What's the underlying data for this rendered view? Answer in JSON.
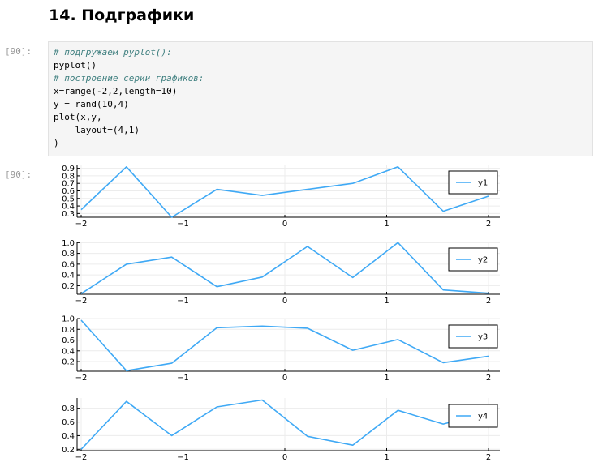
{
  "heading": "14. Подграфики",
  "input_prompt": "[90]:",
  "output_prompt": "[90]:",
  "code_lines": [
    "# подгружаем pyplot():",
    "pyplot()",
    "# построение серии графиков:",
    "x=range(-2,2,length=10)",
    "y = rand(10,4)",
    "plot(x,y,",
    "    layout=(4,1)",
    ")"
  ],
  "code_comment_lines": [
    0,
    2
  ],
  "colors": {
    "series": "#3fa9f5",
    "comment": "#408080",
    "cell_bg": "#f5f5f5"
  },
  "chart_data": [
    {
      "type": "line",
      "x": [
        -2,
        -1.5556,
        -1.1111,
        -0.6667,
        -0.2222,
        0.2222,
        0.6667,
        1.1111,
        1.5556,
        2
      ],
      "series": [
        {
          "name": "y1",
          "values": [
            0.35,
            0.92,
            0.25,
            0.62,
            0.54,
            0.62,
            0.7,
            0.92,
            0.33,
            0.53
          ]
        }
      ],
      "xlim": [
        -2,
        2
      ],
      "ylim": [
        0.25,
        0.95
      ],
      "xticks": [
        -2,
        -1,
        0,
        1,
        2
      ],
      "xtick_labels": [
        "−2",
        "−1",
        "0",
        "1",
        "2"
      ],
      "yticks": [
        0.3,
        0.4,
        0.5,
        0.6,
        0.7,
        0.8,
        0.9
      ],
      "ytick_labels": [
        "0.3",
        "0.4",
        "0.5",
        "0.6",
        "0.7",
        "0.8",
        "0.9"
      ],
      "grid": true,
      "legend": "top-right"
    },
    {
      "type": "line",
      "x": [
        -2,
        -1.5556,
        -1.1111,
        -0.6667,
        -0.2222,
        0.2222,
        0.6667,
        1.1111,
        1.5556,
        2
      ],
      "series": [
        {
          "name": "y2",
          "values": [
            0.05,
            0.6,
            0.73,
            0.18,
            0.36,
            0.93,
            0.35,
            1.0,
            0.12,
            0.06
          ]
        }
      ],
      "xlim": [
        -2,
        2
      ],
      "ylim": [
        0.04,
        1.02
      ],
      "xticks": [
        -2,
        -1,
        0,
        1,
        2
      ],
      "xtick_labels": [
        "−2",
        "−1",
        "0",
        "1",
        "2"
      ],
      "yticks": [
        0.2,
        0.4,
        0.6,
        0.8,
        1.0
      ],
      "ytick_labels": [
        "0.2",
        "0.4",
        "0.6",
        "0.8",
        "1.0"
      ],
      "grid": true,
      "legend": "top-right"
    },
    {
      "type": "line",
      "x": [
        -2,
        -1.5556,
        -1.1111,
        -0.6667,
        -0.2222,
        0.2222,
        0.6667,
        1.1111,
        1.5556,
        2
      ],
      "series": [
        {
          "name": "y3",
          "values": [
            0.97,
            0.03,
            0.17,
            0.83,
            0.86,
            0.82,
            0.41,
            0.61,
            0.18,
            0.3
          ]
        }
      ],
      "xlim": [
        -2,
        2
      ],
      "ylim": [
        0.02,
        1.0
      ],
      "xticks": [
        -2,
        -1,
        0,
        1,
        2
      ],
      "xtick_labels": [
        "−2",
        "−1",
        "0",
        "1",
        "2"
      ],
      "yticks": [
        0.2,
        0.4,
        0.6,
        0.8,
        1.0
      ],
      "ytick_labels": [
        "0.2",
        "0.4",
        "0.6",
        "0.8",
        "1.0"
      ],
      "grid": true,
      "legend": "top-right"
    },
    {
      "type": "line",
      "x": [
        -2,
        -1.5556,
        -1.1111,
        -0.6667,
        -0.2222,
        0.2222,
        0.6667,
        1.1111,
        1.5556,
        2
      ],
      "series": [
        {
          "name": "y4",
          "values": [
            0.2,
            0.9,
            0.4,
            0.82,
            0.92,
            0.39,
            0.26,
            0.77,
            0.57,
            0.74
          ]
        }
      ],
      "xlim": [
        -2,
        2
      ],
      "ylim": [
        0.18,
        0.95
      ],
      "xticks": [
        -2,
        -1,
        0,
        1,
        2
      ],
      "xtick_labels": [
        "−2",
        "−1",
        "0",
        "1",
        "2"
      ],
      "yticks": [
        0.2,
        0.4,
        0.6,
        0.8
      ],
      "ytick_labels": [
        "0.2",
        "0.4",
        "0.6",
        "0.8"
      ],
      "grid": true,
      "legend": "top-right"
    }
  ]
}
